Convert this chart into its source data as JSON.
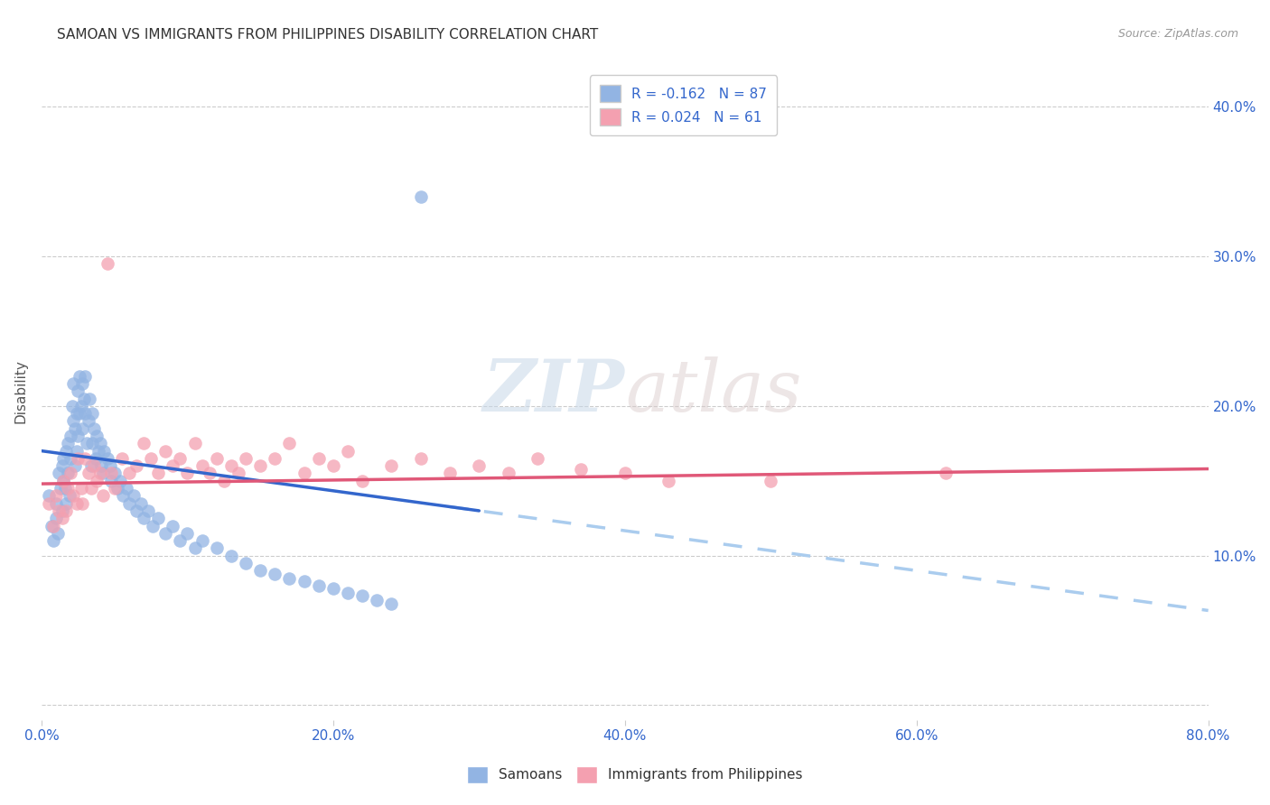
{
  "title": "SAMOAN VS IMMIGRANTS FROM PHILIPPINES DISABILITY CORRELATION CHART",
  "source": "Source: ZipAtlas.com",
  "xlabel_ticks": [
    "0.0%",
    "20.0%",
    "40.0%",
    "60.0%",
    "80.0%"
  ],
  "xlabel_values": [
    0.0,
    0.2,
    0.4,
    0.6,
    0.8
  ],
  "ylabel": "Disability",
  "ylabel_right_ticks": [
    "10.0%",
    "20.0%",
    "30.0%",
    "40.0%"
  ],
  "ylabel_right_values": [
    0.1,
    0.2,
    0.3,
    0.4
  ],
  "xlim": [
    0.0,
    0.8
  ],
  "ylim": [
    -0.01,
    0.43
  ],
  "samoans_color": "#92B4E3",
  "philippines_color": "#F4A0B0",
  "samoans_line_color": "#3366CC",
  "samoans_dashed_color": "#AACCEE",
  "philippines_line_color": "#E05878",
  "samoans_label": "Samoans",
  "philippines_label": "Immigrants from Philippines",
  "R_samoans": -0.162,
  "N_samoans": 87,
  "R_philippines": 0.024,
  "N_philippines": 61,
  "watermark": "ZIPatlas",
  "background_color": "#ffffff",
  "grid_color": "#cccccc",
  "title_fontsize": 11,
  "source_fontsize": 9,
  "legend_fontsize": 11,
  "samoans_x": [
    0.005,
    0.007,
    0.008,
    0.01,
    0.01,
    0.011,
    0.012,
    0.013,
    0.014,
    0.014,
    0.015,
    0.015,
    0.016,
    0.017,
    0.017,
    0.018,
    0.018,
    0.019,
    0.02,
    0.02,
    0.021,
    0.022,
    0.022,
    0.023,
    0.023,
    0.024,
    0.024,
    0.025,
    0.025,
    0.026,
    0.026,
    0.027,
    0.028,
    0.028,
    0.029,
    0.03,
    0.03,
    0.031,
    0.032,
    0.033,
    0.034,
    0.035,
    0.035,
    0.036,
    0.037,
    0.038,
    0.039,
    0.04,
    0.041,
    0.042,
    0.043,
    0.045,
    0.047,
    0.048,
    0.05,
    0.052,
    0.054,
    0.056,
    0.058,
    0.06,
    0.063,
    0.065,
    0.068,
    0.07,
    0.073,
    0.076,
    0.08,
    0.085,
    0.09,
    0.095,
    0.1,
    0.105,
    0.11,
    0.12,
    0.13,
    0.14,
    0.15,
    0.16,
    0.17,
    0.18,
    0.19,
    0.2,
    0.21,
    0.22,
    0.23,
    0.24,
    0.26
  ],
  "samoans_y": [
    0.14,
    0.12,
    0.11,
    0.125,
    0.135,
    0.115,
    0.155,
    0.145,
    0.16,
    0.13,
    0.165,
    0.15,
    0.145,
    0.17,
    0.135,
    0.175,
    0.155,
    0.14,
    0.18,
    0.165,
    0.2,
    0.19,
    0.215,
    0.185,
    0.16,
    0.195,
    0.17,
    0.21,
    0.18,
    0.22,
    0.195,
    0.2,
    0.215,
    0.185,
    0.205,
    0.22,
    0.195,
    0.175,
    0.19,
    0.205,
    0.16,
    0.175,
    0.195,
    0.185,
    0.165,
    0.18,
    0.17,
    0.175,
    0.16,
    0.155,
    0.17,
    0.165,
    0.16,
    0.15,
    0.155,
    0.145,
    0.15,
    0.14,
    0.145,
    0.135,
    0.14,
    0.13,
    0.135,
    0.125,
    0.13,
    0.12,
    0.125,
    0.115,
    0.12,
    0.11,
    0.115,
    0.105,
    0.11,
    0.105,
    0.1,
    0.095,
    0.09,
    0.088,
    0.085,
    0.083,
    0.08,
    0.078,
    0.075,
    0.073,
    0.07,
    0.068,
    0.34
  ],
  "philippines_x": [
    0.005,
    0.008,
    0.01,
    0.012,
    0.014,
    0.015,
    0.017,
    0.018,
    0.02,
    0.022,
    0.024,
    0.025,
    0.027,
    0.028,
    0.03,
    0.032,
    0.034,
    0.036,
    0.038,
    0.04,
    0.042,
    0.045,
    0.048,
    0.05,
    0.055,
    0.06,
    0.065,
    0.07,
    0.075,
    0.08,
    0.085,
    0.09,
    0.095,
    0.1,
    0.105,
    0.11,
    0.115,
    0.12,
    0.125,
    0.13,
    0.135,
    0.14,
    0.15,
    0.16,
    0.17,
    0.18,
    0.19,
    0.2,
    0.21,
    0.22,
    0.24,
    0.26,
    0.28,
    0.3,
    0.32,
    0.34,
    0.37,
    0.4,
    0.43,
    0.5,
    0.62
  ],
  "philippines_y": [
    0.135,
    0.12,
    0.14,
    0.13,
    0.125,
    0.15,
    0.13,
    0.145,
    0.155,
    0.14,
    0.135,
    0.165,
    0.145,
    0.135,
    0.165,
    0.155,
    0.145,
    0.16,
    0.15,
    0.155,
    0.14,
    0.295,
    0.155,
    0.145,
    0.165,
    0.155,
    0.16,
    0.175,
    0.165,
    0.155,
    0.17,
    0.16,
    0.165,
    0.155,
    0.175,
    0.16,
    0.155,
    0.165,
    0.15,
    0.16,
    0.155,
    0.165,
    0.16,
    0.165,
    0.175,
    0.155,
    0.165,
    0.16,
    0.17,
    0.15,
    0.16,
    0.165,
    0.155,
    0.16,
    0.155,
    0.165,
    0.158,
    0.155,
    0.15,
    0.15,
    0.155
  ],
  "reg_line_samoans_x0": 0.0,
  "reg_line_samoans_x1": 0.3,
  "reg_line_samoans_y0": 0.17,
  "reg_line_samoans_y1": 0.13,
  "reg_line_samoans_dash_x0": 0.28,
  "reg_line_samoans_dash_x1": 0.8,
  "reg_line_philippines_x0": 0.0,
  "reg_line_philippines_x1": 0.8,
  "reg_line_philippines_y0": 0.148,
  "reg_line_philippines_y1": 0.158
}
